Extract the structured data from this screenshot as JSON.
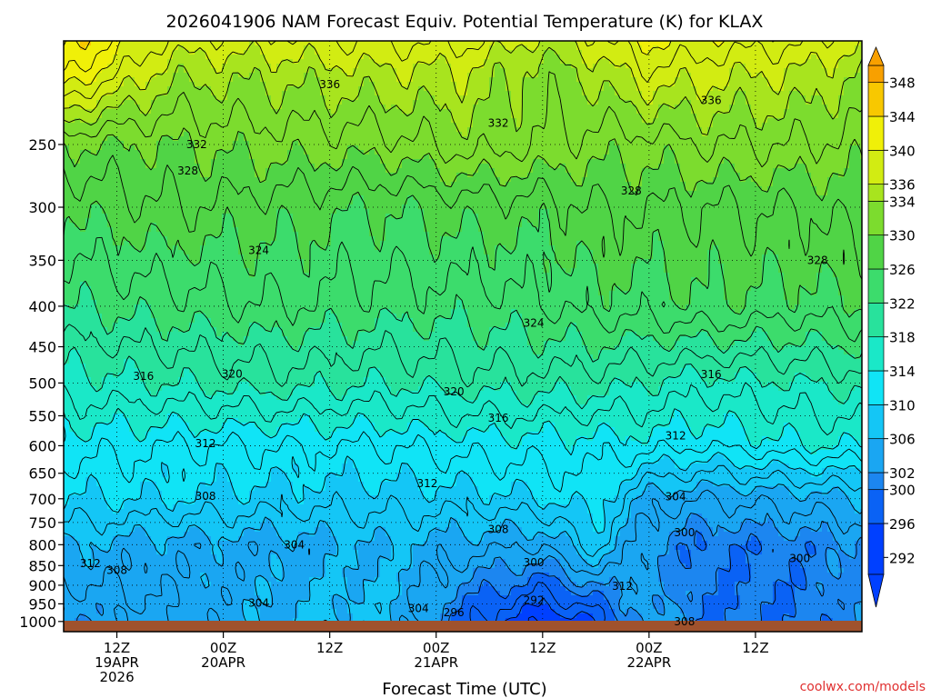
{
  "chart_data": {
    "type": "heatmap",
    "title": "2026041906 NAM Forecast Equiv. Potential Temperature (K) for KLAX",
    "xlabel": "Forecast Time (UTC)",
    "ylabel": "",
    "credit": "coolwx.com/models",
    "x_range_hours": [
      -6,
      84
    ],
    "x_ticks": [
      {
        "hour": 0,
        "lines": [
          "12Z",
          "19APR",
          "2026"
        ]
      },
      {
        "hour": 12,
        "lines": [
          "00Z",
          "20APR"
        ]
      },
      {
        "hour": 24,
        "lines": [
          "12Z"
        ]
      },
      {
        "hour": 36,
        "lines": [
          "00Z",
          "21APR"
        ]
      },
      {
        "hour": 48,
        "lines": [
          "12Z"
        ]
      },
      {
        "hour": 60,
        "lines": [
          "00Z",
          "22APR"
        ]
      },
      {
        "hour": 72,
        "lines": [
          "12Z"
        ]
      }
    ],
    "y_axis": {
      "type": "pressure_hPa",
      "range": [
        1030,
        185
      ],
      "inverted": true
    },
    "y_ticks": [
      250,
      300,
      350,
      400,
      450,
      500,
      550,
      600,
      650,
      700,
      750,
      800,
      850,
      900,
      950,
      1000
    ],
    "colorbar": {
      "levels": [
        292,
        296,
        300,
        302,
        306,
        310,
        314,
        318,
        322,
        326,
        330,
        334,
        336,
        340,
        344,
        348
      ],
      "colors": [
        "#0040ff",
        "#0a62f5",
        "#1c86f0",
        "#1aa6f2",
        "#14c6f6",
        "#10e4f6",
        "#1ae8c8",
        "#28e29c",
        "#3cdc6c",
        "#50d446",
        "#7cdc2e",
        "#a8e41e",
        "#d2ec12",
        "#f0f008",
        "#f8c800",
        "#f8a000"
      ],
      "range": [
        290,
        350
      ]
    },
    "series": [
      {
        "name": "surface_K",
        "hour": [
          -6,
          6,
          18,
          30,
          40,
          48,
          54,
          60,
          66,
          78,
          84
        ],
        "values": [
          302,
          304,
          306,
          307,
          298,
          294,
          296,
          304,
          300,
          300,
          302
        ]
      },
      {
        "name": "800hPa_K",
        "hour": [
          -6,
          6,
          18,
          30,
          40,
          48,
          54,
          60,
          66,
          78,
          84
        ],
        "values": [
          306,
          305,
          305,
          306,
          305,
          304,
          309,
          302,
          300,
          301,
          302
        ]
      },
      {
        "name": "700hPa_K",
        "hour": [
          -6,
          6,
          18,
          30,
          40,
          48,
          54,
          60,
          66,
          78,
          84
        ],
        "values": [
          310,
          310,
          309,
          309,
          309,
          310,
          311,
          305,
          304,
          305,
          306
        ]
      },
      {
        "name": "600hPa_K",
        "hour": [
          -6,
          6,
          18,
          30,
          40,
          48,
          54,
          60,
          66,
          78,
          84
        ],
        "values": [
          313,
          312,
          312,
          312,
          313,
          313,
          313,
          313,
          312,
          314,
          314
        ]
      },
      {
        "name": "500hPa_K",
        "hour": [
          -6,
          6,
          18,
          30,
          40,
          48,
          54,
          60,
          66,
          78,
          84
        ],
        "values": [
          317,
          318,
          319,
          318,
          319,
          319,
          319,
          318,
          317,
          318,
          319
        ]
      },
      {
        "name": "400hPa_K",
        "hour": [
          -6,
          6,
          18,
          30,
          40,
          48,
          54,
          60,
          66,
          78,
          84
        ],
        "values": [
          322,
          323,
          324,
          323,
          323,
          324,
          325,
          325,
          326,
          325,
          326
        ]
      },
      {
        "name": "300hPa_K",
        "hour": [
          -6,
          6,
          18,
          30,
          40,
          48,
          54,
          60,
          66,
          78,
          84
        ],
        "values": [
          326,
          328,
          327,
          326,
          327,
          327,
          328,
          328,
          328,
          328,
          329
        ]
      },
      {
        "name": "250hPa_K",
        "hour": [
          -6,
          6,
          18,
          30,
          40,
          48,
          54,
          60,
          66,
          78,
          84
        ],
        "values": [
          330,
          330,
          331,
          331,
          333,
          332,
          331,
          331,
          332,
          332,
          331
        ]
      },
      {
        "name": "200hPa_K",
        "hour": [
          -6,
          6,
          18,
          30,
          40,
          48,
          54,
          60,
          66,
          78,
          84
        ],
        "values": [
          343,
          335,
          335,
          336,
          336,
          333,
          335,
          338,
          337,
          336,
          334
        ]
      }
    ],
    "contour_labels": [
      {
        "text": "336",
        "hour": 24,
        "p": 210
      },
      {
        "text": "336",
        "hour": 67,
        "p": 220
      },
      {
        "text": "332",
        "hour": 43,
        "p": 235
      },
      {
        "text": "332",
        "hour": 9,
        "p": 250
      },
      {
        "text": "328",
        "hour": 8,
        "p": 270
      },
      {
        "text": "328",
        "hour": 58,
        "p": 286
      },
      {
        "text": "328",
        "hour": 79,
        "p": 350
      },
      {
        "text": "324",
        "hour": 16,
        "p": 340
      },
      {
        "text": "324",
        "hour": 47,
        "p": 420
      },
      {
        "text": "320",
        "hour": 13,
        "p": 487
      },
      {
        "text": "320",
        "hour": 38,
        "p": 513
      },
      {
        "text": "316",
        "hour": 3,
        "p": 490
      },
      {
        "text": "316",
        "hour": 43,
        "p": 554
      },
      {
        "text": "316",
        "hour": 67,
        "p": 488
      },
      {
        "text": "312",
        "hour": 10,
        "p": 596
      },
      {
        "text": "312",
        "hour": 35,
        "p": 670
      },
      {
        "text": "312",
        "hour": 63,
        "p": 583
      },
      {
        "text": "312",
        "hour": -3,
        "p": 845
      },
      {
        "text": "312",
        "hour": 57,
        "p": 902
      },
      {
        "text": "308",
        "hour": 10,
        "p": 695
      },
      {
        "text": "308",
        "hour": 43,
        "p": 765
      },
      {
        "text": "308",
        "hour": 0,
        "p": 862
      },
      {
        "text": "308",
        "hour": 64,
        "p": 1000
      },
      {
        "text": "304",
        "hour": 20,
        "p": 800
      },
      {
        "text": "304",
        "hour": 63,
        "p": 696
      },
      {
        "text": "304",
        "hour": 16,
        "p": 948
      },
      {
        "text": "304",
        "hour": 34,
        "p": 963
      },
      {
        "text": "300",
        "hour": 47,
        "p": 843
      },
      {
        "text": "300",
        "hour": 64,
        "p": 772
      },
      {
        "text": "300",
        "hour": 77,
        "p": 833
      },
      {
        "text": "296",
        "hour": 38,
        "p": 975
      },
      {
        "text": "292",
        "hour": 47,
        "p": 940
      }
    ]
  }
}
